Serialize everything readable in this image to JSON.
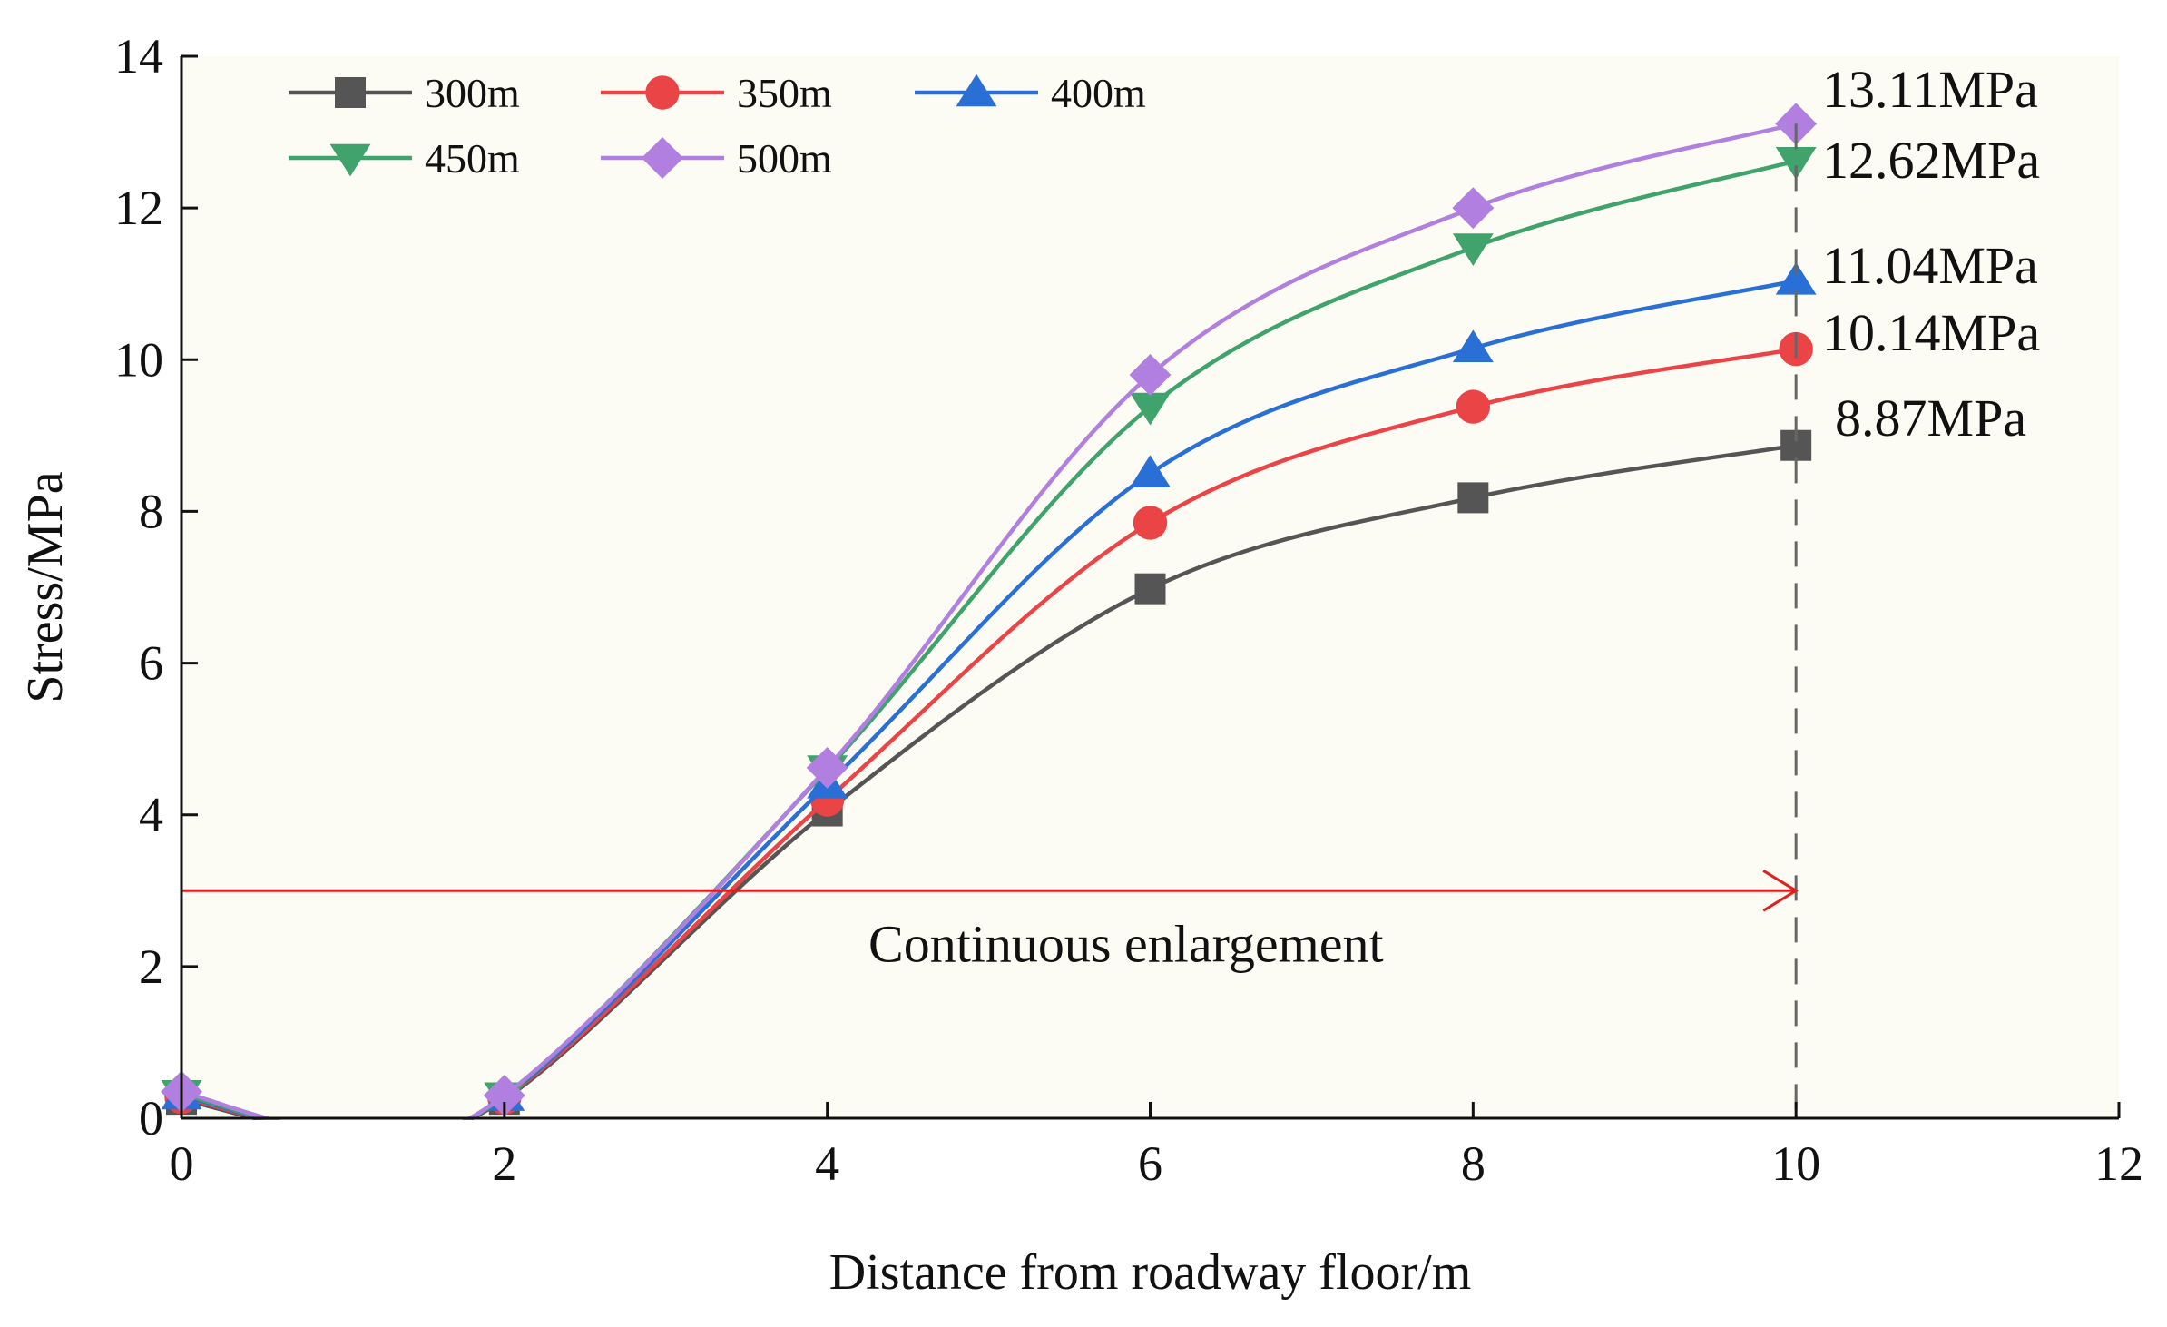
{
  "chart_data": {
    "type": "line",
    "title": "",
    "xlabel": "Distance from roadway floor/m",
    "ylabel": "Stress/MPa",
    "xlim": [
      0,
      12
    ],
    "ylim": [
      0,
      14
    ],
    "xticks": [
      0,
      2,
      4,
      6,
      8,
      10,
      12
    ],
    "yticks": [
      0,
      2,
      4,
      6,
      8,
      10,
      12,
      14
    ],
    "grid": false,
    "legend_position": "top-left",
    "x": [
      0,
      2,
      4,
      6,
      8,
      10
    ],
    "series": [
      {
        "name": "300m",
        "color": "#555555",
        "marker": "square",
        "values": [
          0.25,
          0.25,
          4.05,
          6.98,
          8.18,
          8.87
        ]
      },
      {
        "name": "350m",
        "color": "#ea4446",
        "marker": "circle",
        "values": [
          0.28,
          0.27,
          4.2,
          7.85,
          9.38,
          10.14
        ]
      },
      {
        "name": "400m",
        "color": "#2a6fd6",
        "marker": "triangle-up",
        "values": [
          0.3,
          0.28,
          4.4,
          8.5,
          10.15,
          11.04
        ]
      },
      {
        "name": "450m",
        "color": "#3fa36b",
        "marker": "triangle-down",
        "values": [
          0.32,
          0.29,
          4.6,
          9.38,
          11.48,
          12.62
        ]
      },
      {
        "name": "500m",
        "color": "#b07fe0",
        "marker": "diamond",
        "values": [
          0.35,
          0.3,
          4.62,
          9.8,
          12.0,
          13.11
        ]
      }
    ],
    "end_labels": [
      "8.87MPa",
      "10.14MPa",
      "11.04MPa",
      "12.62MPa",
      "13.11MPa"
    ],
    "annotation": {
      "text": "Continuous enlargement",
      "arrow_from": [
        0,
        3
      ],
      "arrow_to": [
        10,
        3
      ],
      "arrow_color": "#e02020"
    },
    "reference_line": {
      "x": 10,
      "style": "dashed",
      "color": "#666666"
    }
  }
}
